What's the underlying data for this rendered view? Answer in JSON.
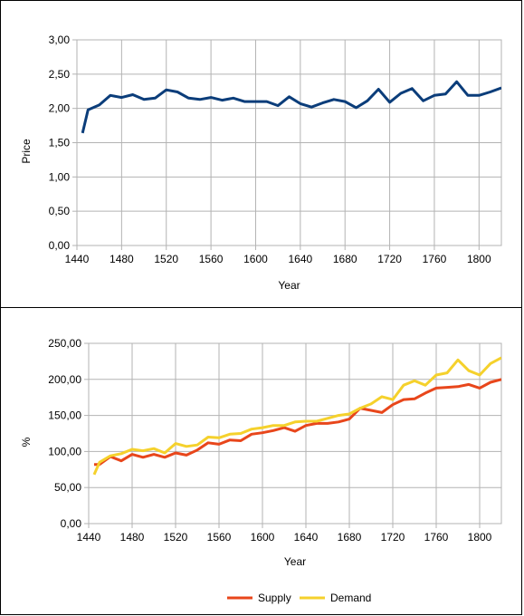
{
  "chart_data": [
    {
      "type": "line",
      "title": "",
      "xlabel": "Year",
      "ylabel": "Price",
      "xlim": [
        1440,
        1820
      ],
      "ylim": [
        0,
        3
      ],
      "grid": true,
      "legend": "none",
      "x_ticks": [
        "1440",
        "1480",
        "1520",
        "1560",
        "1600",
        "1640",
        "1680",
        "1720",
        "1760",
        "1800"
      ],
      "y_ticks": [
        "0,00",
        "0,50",
        "1,00",
        "1,50",
        "2,00",
        "2,50",
        "3,00"
      ],
      "series": [
        {
          "color": "#0b3d7a",
          "x": [
            1445,
            1450,
            1460,
            1470,
            1480,
            1490,
            1500,
            1510,
            1520,
            1530,
            1540,
            1550,
            1560,
            1570,
            1580,
            1590,
            1600,
            1610,
            1620,
            1630,
            1640,
            1650,
            1660,
            1670,
            1680,
            1690,
            1700,
            1710,
            1720,
            1730,
            1740,
            1750,
            1760,
            1770,
            1780,
            1790,
            1800,
            1810,
            1820
          ],
          "values": [
            1.64,
            1.98,
            2.05,
            2.19,
            2.16,
            2.2,
            2.13,
            2.15,
            2.27,
            2.24,
            2.15,
            2.13,
            2.16,
            2.12,
            2.15,
            2.1,
            2.1,
            2.1,
            2.04,
            2.17,
            2.07,
            2.02,
            2.08,
            2.13,
            2.1,
            2.01,
            2.11,
            2.28,
            2.09,
            2.22,
            2.29,
            2.11,
            2.19,
            2.21,
            2.39,
            2.19,
            2.19,
            2.24,
            2.3
          ]
        }
      ]
    },
    {
      "type": "line",
      "title": "",
      "xlabel": "Year",
      "ylabel": "%",
      "xlim": [
        1440,
        1820
      ],
      "ylim": [
        0,
        250
      ],
      "grid": true,
      "legend": "bottom",
      "x_ticks": [
        "1440",
        "1480",
        "1520",
        "1560",
        "1600",
        "1640",
        "1680",
        "1720",
        "1760",
        "1800"
      ],
      "y_ticks": [
        "0,00",
        "50,00",
        "100,00",
        "150,00",
        "200,00",
        "250,00"
      ],
      "series": [
        {
          "name": "Supply",
          "color": "#e8461b",
          "x": [
            1445,
            1450,
            1460,
            1470,
            1480,
            1490,
            1500,
            1510,
            1520,
            1530,
            1540,
            1550,
            1560,
            1570,
            1580,
            1590,
            1600,
            1610,
            1620,
            1630,
            1640,
            1650,
            1660,
            1670,
            1680,
            1690,
            1700,
            1710,
            1720,
            1730,
            1740,
            1750,
            1760,
            1770,
            1780,
            1790,
            1800,
            1810,
            1820
          ],
          "values": [
            82,
            82,
            93,
            87,
            96,
            92,
            96,
            92,
            98,
            95,
            102,
            112,
            110,
            116,
            115,
            124,
            126,
            129,
            133,
            128,
            136,
            139,
            139,
            141,
            145,
            160,
            157,
            154,
            165,
            172,
            173,
            181,
            188,
            189,
            190,
            193,
            188,
            196,
            200
          ]
        },
        {
          "name": "Demand",
          "color": "#f5d12c",
          "x": [
            1445,
            1450,
            1460,
            1470,
            1480,
            1490,
            1500,
            1510,
            1520,
            1530,
            1540,
            1550,
            1560,
            1570,
            1580,
            1590,
            1600,
            1610,
            1620,
            1630,
            1640,
            1650,
            1660,
            1670,
            1680,
            1690,
            1700,
            1710,
            1720,
            1730,
            1740,
            1750,
            1760,
            1770,
            1780,
            1790,
            1800,
            1810,
            1820
          ],
          "values": [
            68,
            85,
            94,
            97,
            103,
            101,
            104,
            98,
            111,
            107,
            109,
            120,
            119,
            124,
            125,
            131,
            133,
            136,
            136,
            141,
            142,
            142,
            146,
            150,
            152,
            160,
            166,
            176,
            172,
            192,
            198,
            192,
            206,
            209,
            227,
            212,
            206,
            222,
            230
          ]
        }
      ]
    }
  ]
}
